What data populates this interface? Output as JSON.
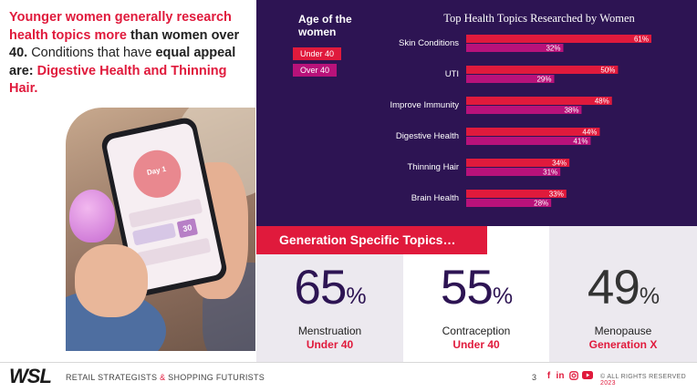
{
  "headline": {
    "part1": "Younger women generally research health topics more",
    "part2": " than women over 40.",
    "part3": " Conditions that have ",
    "part4": "equal appeal are: ",
    "part5": "Digestive Health and Thinning Hair."
  },
  "photo": {
    "day_label": "Day 1",
    "screen_number": "30"
  },
  "legend": {
    "title": "Age of the women",
    "items": [
      {
        "label": "Under 40",
        "color": "#e01a3c"
      },
      {
        "label": "Over 40",
        "color": "#b8127a"
      }
    ]
  },
  "chart_data": {
    "type": "bar",
    "orientation": "horizontal",
    "title": "Top Health Topics Researched by Women",
    "categories": [
      "Skin Conditions",
      "UTI",
      "Improve Immunity",
      "Digestive Health",
      "Thinning Hair",
      "Brain Health"
    ],
    "series": [
      {
        "name": "Under 40",
        "color": "#e01a3c",
        "values": [
          61,
          50,
          48,
          44,
          34,
          33
        ],
        "labels": [
          "61%",
          "50%",
          "48%",
          "44%",
          "34%",
          "33%"
        ]
      },
      {
        "name": "Over 40",
        "color": "#b8127a",
        "values": [
          32,
          29,
          38,
          41,
          31,
          28
        ],
        "labels": [
          "32%",
          "29%",
          "38%",
          "41%",
          "31%",
          "28%"
        ]
      }
    ],
    "xlim": [
      0,
      61
    ],
    "grid": false,
    "legend_position": "top-left"
  },
  "generation": {
    "banner": "Generation Specific Topics…",
    "stats": [
      {
        "value": "65",
        "unit": "%",
        "label": "Menstruation",
        "group": "Under 40",
        "color": "#2d1453"
      },
      {
        "value": "55",
        "unit": "%",
        "label": "Contraception",
        "group": "Under 40",
        "color": "#2d1453"
      },
      {
        "value": "49",
        "unit": "%",
        "label": "Menopause",
        "group": "Generation X",
        "color": "#333333"
      }
    ]
  },
  "footer": {
    "logo": "WSL",
    "tagline_a": "RETAIL STRATEGISTS ",
    "tagline_amp": "&",
    "tagline_b": " SHOPPING FUTURISTS",
    "page": "3",
    "social": [
      "f",
      "in",
      "ig",
      "yt"
    ],
    "rights": "© ALL RIGHTS RESERVED ",
    "year": "2023"
  }
}
